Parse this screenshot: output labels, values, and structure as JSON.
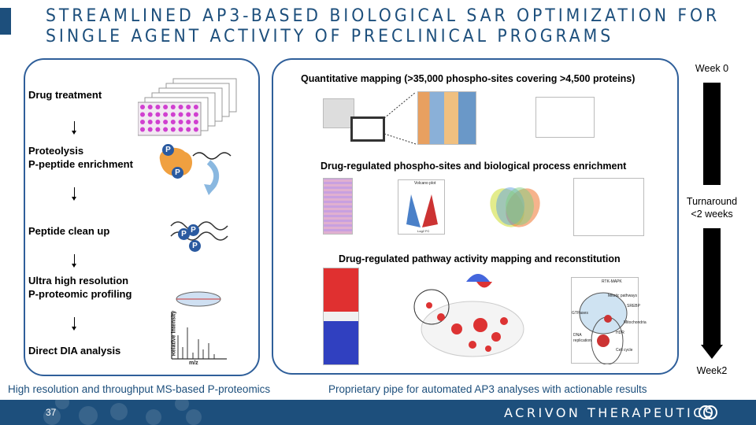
{
  "title": {
    "line1": "STREAMLINED AP3-BASED BIOLOGICAL SAR OPTIMIZATION FOR",
    "line2": "SINGLE AGENT ACTIVITY OF PRECLINICAL PROGRAMS"
  },
  "left": {
    "steps": [
      {
        "label": "Drug treatment"
      },
      {
        "label": "Proteolysis\nP-peptide enrichment"
      },
      {
        "label": "Peptide clean up"
      },
      {
        "label": "Ultra high resolution\nP-proteomic profiling"
      },
      {
        "label": "Direct DIA analysis"
      }
    ],
    "p_label": "P",
    "spectrum": {
      "ylabel": "Relative intensity",
      "xlabel": "m/z"
    },
    "caption": "High resolution and throughput MS-based P-proteomics"
  },
  "right": {
    "sections": [
      {
        "heading": "Quantitative mapping (>35,000 phospho-sites covering >4,500 proteins)"
      },
      {
        "heading": "Drug-regulated phospho-sites and biological process enrichment",
        "volcano_title": "Volcano plot",
        "volcano_xlabel": "Log2 FC"
      },
      {
        "heading": "Drug-regulated pathway activity mapping and reconstitution",
        "network_labels": [
          "RTK-MAPK",
          "Mitotic pathways",
          "SREBP",
          "GTPases",
          "Mitochondria",
          "HDR",
          "DNA replication",
          "Cell cycle"
        ]
      }
    ],
    "caption": "Proprietary pipe for automated AP3 analyses with actionable results"
  },
  "timeline": {
    "start": "Week 0",
    "middle": "Turnaround\n<2 weeks",
    "end": "Week2"
  },
  "footer": {
    "page_number": "37",
    "company": "ACRIVON THERAPEUTICS"
  },
  "colors": {
    "brand": "#1d4f7c",
    "panel_border": "#2f5f9a",
    "up": "#cc2222",
    "down": "#2255aa"
  }
}
